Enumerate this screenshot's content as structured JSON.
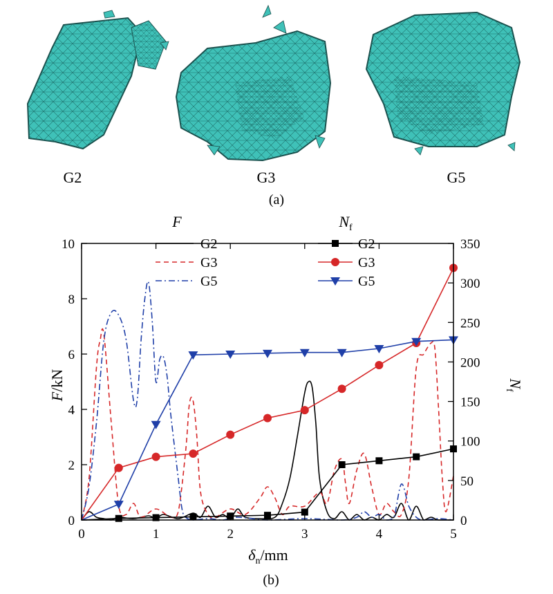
{
  "panel_a": {
    "label": "(a)",
    "samples": [
      {
        "name": "G2",
        "color": "#3fc1b8"
      },
      {
        "name": "G3",
        "color": "#3fc1b8"
      },
      {
        "name": "G5",
        "color": "#3fc1b8"
      }
    ]
  },
  "panel_b": {
    "label": "(b)"
  },
  "chart_data": {
    "type": "line",
    "xlabel": "δn/mm",
    "xlabel_main": "δ",
    "xlabel_sub": "n",
    "xlabel_unit": "/mm",
    "ylabel_left": "F/kN",
    "ylabel_left_main": "F",
    "ylabel_left_unit": "/kN",
    "ylabel_right": "Nf",
    "ylabel_right_main": "N",
    "ylabel_right_sub": "f",
    "xlim": [
      0,
      5
    ],
    "ylim_left": [
      0,
      10
    ],
    "ylim_right": [
      0,
      350
    ],
    "xticks": [
      0,
      1,
      2,
      3,
      4,
      5
    ],
    "yticks_left": [
      0,
      2,
      4,
      6,
      8,
      10
    ],
    "yticks_right": [
      0,
      50,
      100,
      150,
      200,
      250,
      300,
      350
    ],
    "grid": false,
    "legend_F": {
      "title": "F",
      "placement": "top-center",
      "entries": [
        {
          "name": "G2",
          "style": "solid",
          "color": "#000000"
        },
        {
          "name": "G3",
          "style": "dashed",
          "color": "#d62728"
        },
        {
          "name": "G5",
          "style": "dashdot",
          "color": "#1f3fa8"
        }
      ]
    },
    "legend_N": {
      "title": "Nf",
      "title_main": "N",
      "title_sub": "f",
      "placement": "top-right",
      "entries": [
        {
          "name": "G2",
          "marker": "square",
          "color": "#000000"
        },
        {
          "name": "G3",
          "marker": "circle",
          "color": "#d62728"
        },
        {
          "name": "G5",
          "marker": "triangle-down",
          "color": "#1f3fa8"
        }
      ]
    },
    "series_F": [
      {
        "name": "G2",
        "axis": "left",
        "color": "#000000",
        "style": "solid",
        "x": [
          0,
          0.1,
          0.2,
          0.3,
          0.4,
          0.5,
          0.7,
          0.9,
          1.0,
          1.1,
          1.3,
          1.5,
          1.6,
          1.7,
          1.8,
          1.9,
          2.0,
          2.1,
          2.2,
          2.4,
          2.6,
          2.7,
          2.8,
          2.9,
          3.0,
          3.05,
          3.1,
          3.15,
          3.2,
          3.3,
          3.4,
          3.5,
          3.6,
          3.7,
          3.8,
          3.9,
          4.0,
          4.1,
          4.2,
          4.3,
          4.4,
          4.5,
          4.6,
          4.7,
          4.8,
          5.0
        ],
        "y": [
          0,
          0.3,
          0.1,
          0.05,
          0.0,
          0.1,
          0.05,
          0.15,
          0.05,
          0.2,
          0.05,
          0.25,
          0.1,
          0.5,
          0.1,
          0.2,
          0.05,
          0.4,
          0.1,
          0.05,
          0.1,
          0.6,
          1.5,
          3.0,
          4.6,
          5.0,
          4.8,
          3.5,
          1.5,
          0.3,
          0.05,
          0.3,
          0.0,
          0.2,
          0.0,
          0.1,
          0.0,
          0.2,
          0.1,
          0.6,
          0.0,
          0.5,
          0.0,
          0.1,
          0.0,
          0.0
        ]
      },
      {
        "name": "G3",
        "axis": "left",
        "color": "#d62728",
        "style": "dashed",
        "x": [
          0,
          0.1,
          0.2,
          0.25,
          0.3,
          0.4,
          0.5,
          0.6,
          0.7,
          0.8,
          1.0,
          1.2,
          1.3,
          1.4,
          1.45,
          1.5,
          1.55,
          1.6,
          1.7,
          1.8,
          2.0,
          2.2,
          2.4,
          2.5,
          2.6,
          2.7,
          2.8,
          3.0,
          3.2,
          3.3,
          3.4,
          3.5,
          3.55,
          3.6,
          3.7,
          3.8,
          3.9,
          4.0,
          4.1,
          4.2,
          4.3,
          4.4,
          4.5,
          4.6,
          4.7,
          4.75,
          4.8,
          4.85,
          4.9,
          5.0
        ],
        "y": [
          0,
          1.5,
          5.5,
          6.5,
          6.7,
          3.5,
          0.5,
          0.2,
          0.6,
          0.1,
          0.4,
          0.1,
          0.3,
          2.5,
          4.2,
          4.3,
          3.0,
          1.0,
          0.2,
          0.1,
          0.4,
          0.2,
          0.8,
          1.2,
          0.8,
          0.2,
          0.5,
          0.5,
          1.0,
          0.6,
          1.8,
          2.2,
          1.3,
          0.6,
          1.8,
          2.4,
          1.2,
          0.2,
          0.6,
          0.3,
          0.2,
          1.5,
          5.5,
          6.0,
          6.4,
          6.2,
          4.0,
          1.5,
          0.3,
          1.6
        ]
      },
      {
        "name": "G5",
        "axis": "left",
        "color": "#1f3fa8",
        "style": "dashdot",
        "x": [
          0,
          0.1,
          0.2,
          0.3,
          0.4,
          0.5,
          0.6,
          0.7,
          0.75,
          0.8,
          0.85,
          0.9,
          0.95,
          1.0,
          1.05,
          1.1,
          1.15,
          1.2,
          1.3,
          1.35,
          1.4,
          1.5,
          1.7,
          1.9,
          2.1,
          2.5,
          3.0,
          3.5,
          3.7,
          3.8,
          3.9,
          4.0,
          4.1,
          4.2,
          4.3,
          4.4,
          4.5,
          4.6,
          4.8,
          5.0
        ],
        "y": [
          0,
          1.2,
          3.5,
          6.5,
          7.5,
          7.4,
          6.5,
          4.3,
          4.4,
          6.5,
          8.0,
          8.6,
          7.2,
          5.0,
          5.8,
          5.9,
          5.2,
          3.8,
          1.5,
          0.4,
          0.1,
          0.0,
          0.05,
          0.0,
          0.1,
          0.0,
          0.05,
          0.0,
          0.1,
          0.3,
          0.1,
          0.2,
          0.0,
          0.1,
          1.3,
          0.5,
          0.1,
          0.0,
          0.05,
          0.0
        ]
      }
    ],
    "series_N": [
      {
        "name": "G2",
        "axis": "right",
        "color": "#000000",
        "marker": "square",
        "x": [
          0,
          0.5,
          1.0,
          1.5,
          2.0,
          2.5,
          3.0,
          3.5,
          4.0,
          4.5,
          5.0
        ],
        "y": [
          0,
          2,
          3,
          4,
          5,
          6,
          10,
          70,
          75,
          80,
          90
        ]
      },
      {
        "name": "G3",
        "axis": "right",
        "color": "#d62728",
        "marker": "circle",
        "x": [
          0,
          0.5,
          1.0,
          1.5,
          2.0,
          2.5,
          3.0,
          3.5,
          4.0,
          4.5,
          5.0
        ],
        "y": [
          0,
          66,
          80,
          84,
          108,
          129,
          139,
          166,
          196,
          224,
          319
        ]
      },
      {
        "name": "G5",
        "axis": "right",
        "color": "#1f3fa8",
        "marker": "triangle-down",
        "x": [
          0,
          0.5,
          1.0,
          1.5,
          2.0,
          2.5,
          3.0,
          3.5,
          4.0,
          4.5,
          5.0
        ],
        "y": [
          0,
          20,
          121,
          209,
          210,
          211,
          212,
          212,
          217,
          226,
          228
        ]
      }
    ]
  }
}
